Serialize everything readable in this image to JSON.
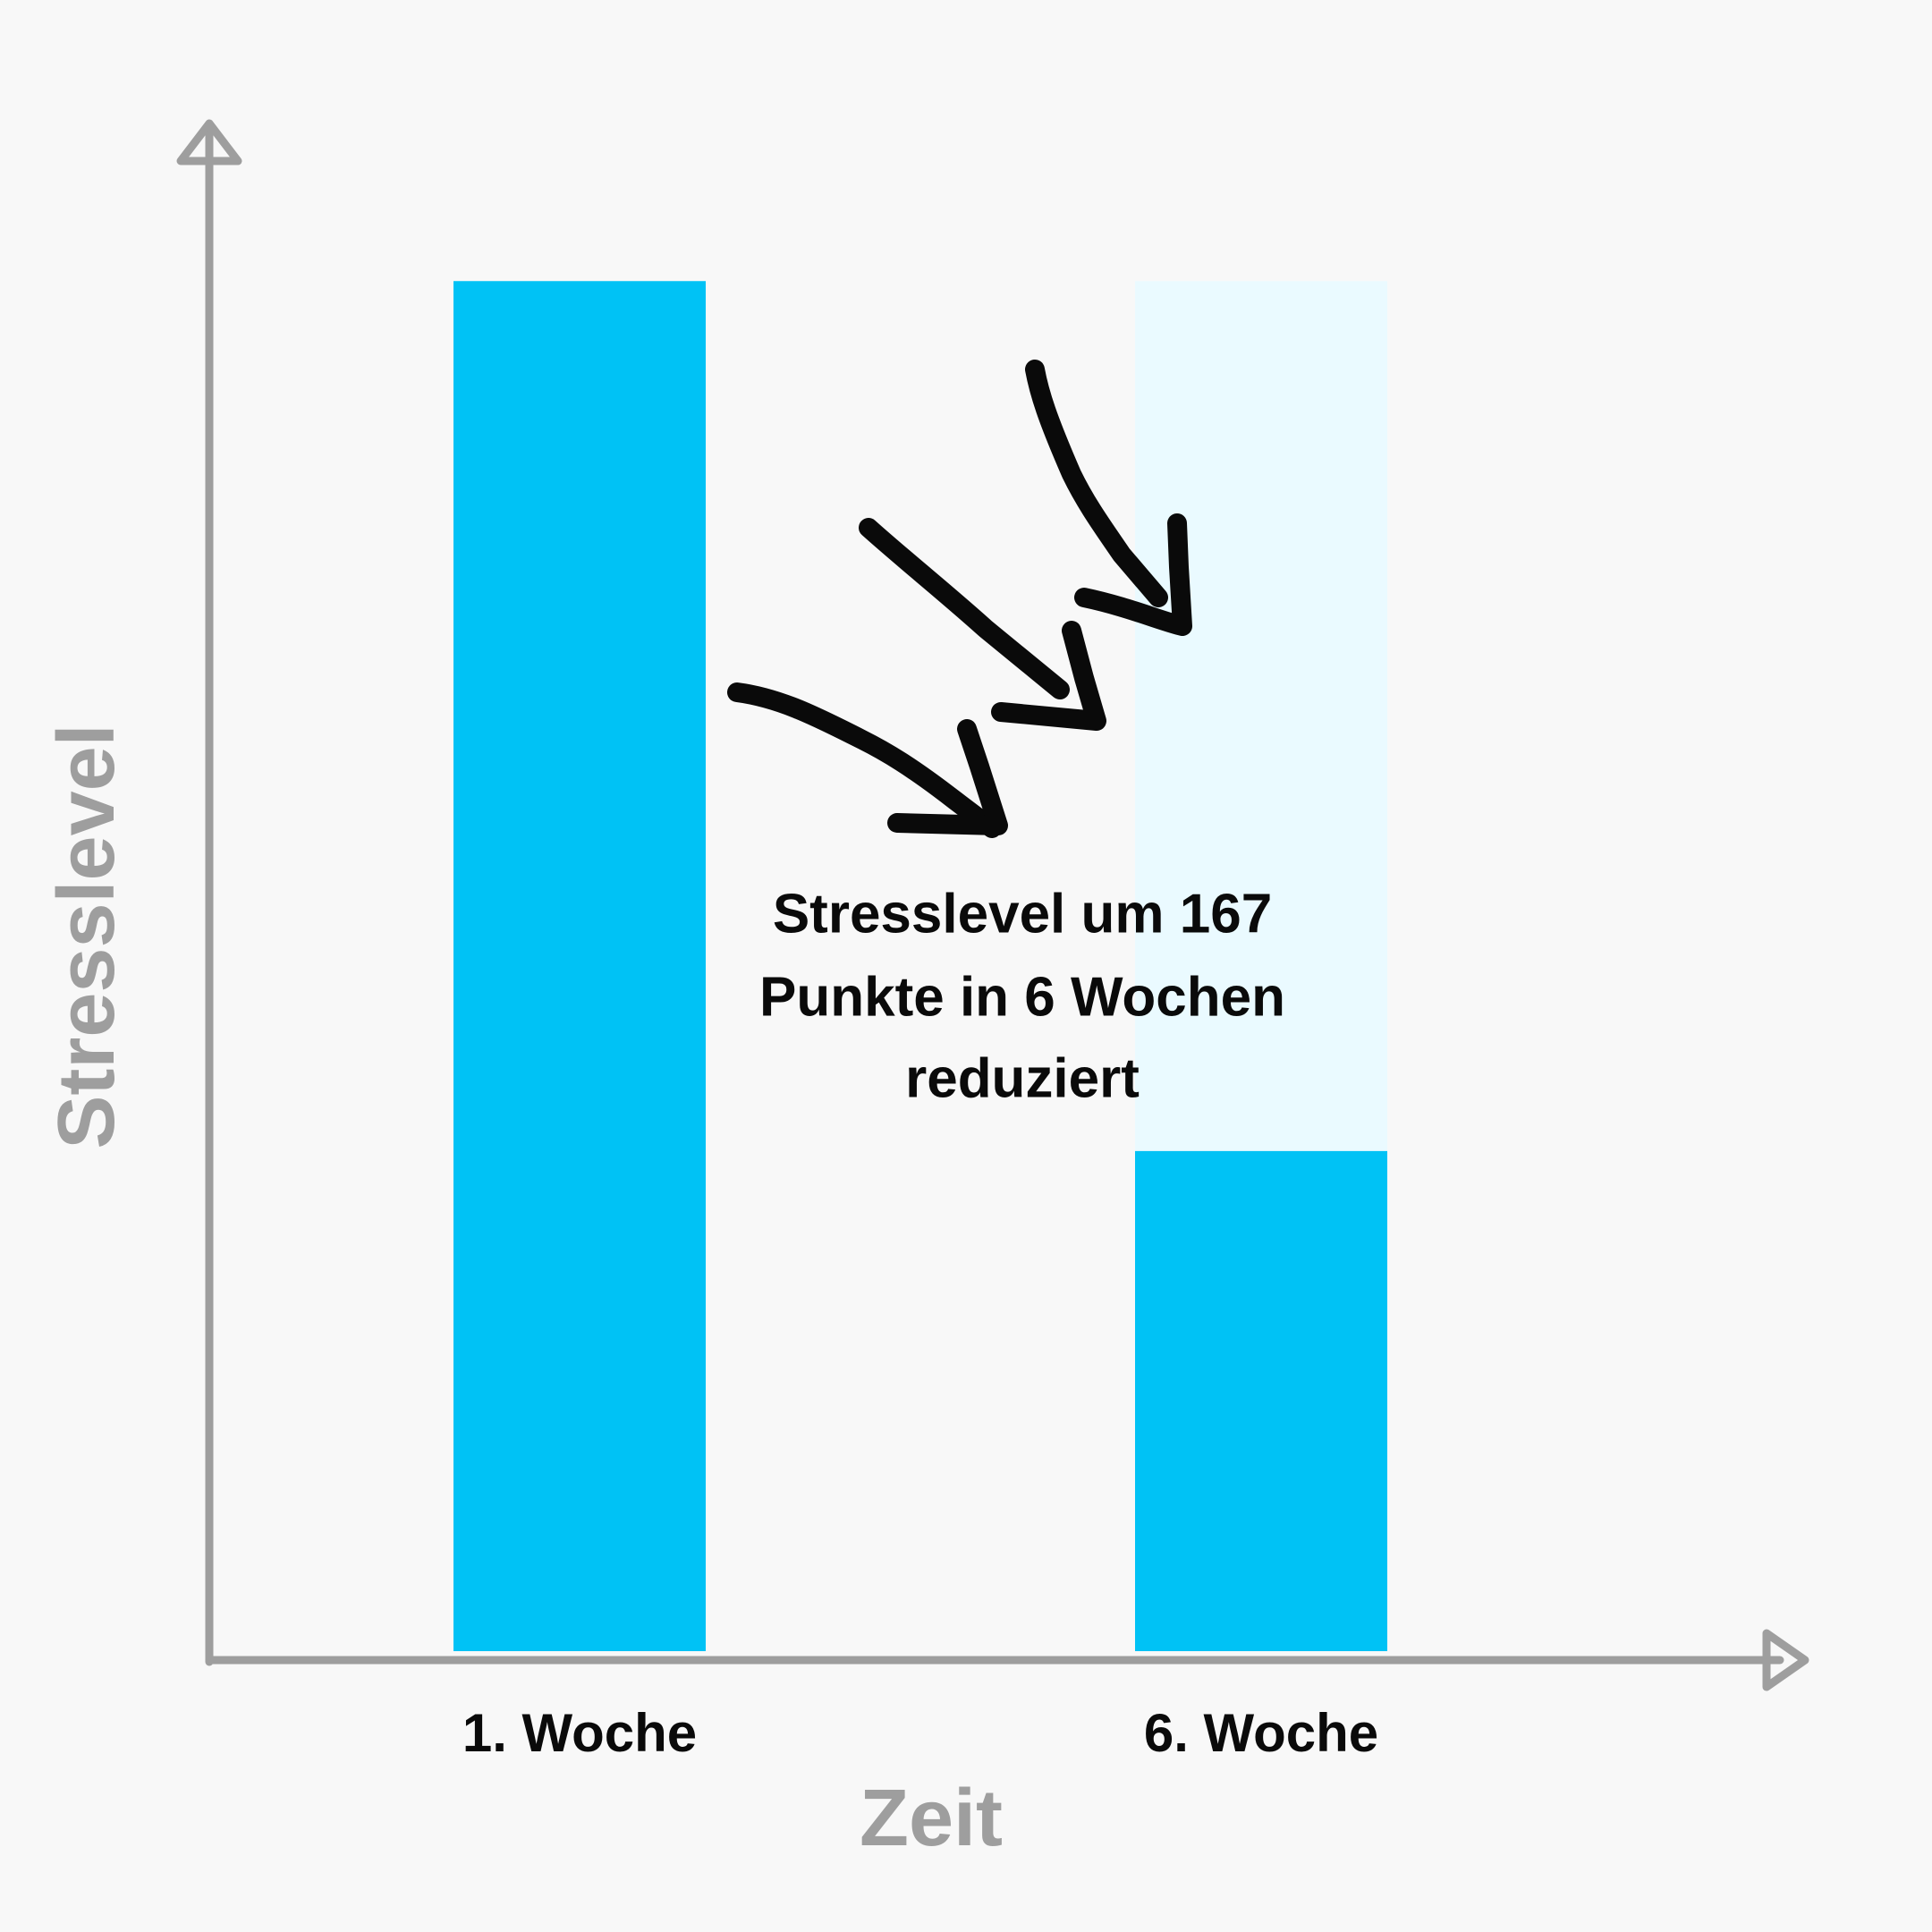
{
  "chart_data": {
    "type": "bar",
    "categories": [
      "1. Woche",
      "6. Woche"
    ],
    "values": [
      263,
      96
    ],
    "color": "#00c2f5",
    "ylim": [
      0,
      290
    ],
    "x_label": "Zeit",
    "y_label": "Stresslevel",
    "annotation": [
      "Stresslevel um 167",
      "Punkte in 6 Wochen",
      "reduziert"
    ]
  }
}
